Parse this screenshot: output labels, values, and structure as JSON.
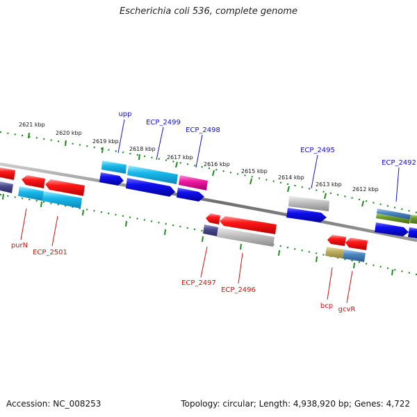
{
  "title": "Escherichia coli 536, complete genome",
  "footer": {
    "accession": "Accession: NC_008253",
    "summary": "Topology: circular; Length: 4,938,920 bp; Genes: 4,722"
  },
  "colors": {
    "backbone": "#777777",
    "tick": "#1a8a1a",
    "plus_label": "#1010c0",
    "minus_label": "#cc1010"
  },
  "position_labels": [
    "2621 kbp",
    "2620 kbp",
    "2619 kbp",
    "2618 kbp",
    "2617 kbp",
    "2616 kbp",
    "2615 kbp",
    "2614 kbp",
    "2613 kbp",
    "2612 kbp"
  ],
  "gene_labels": {
    "upp": "upp",
    "ecp2499": "ECP_2499",
    "ecp2498": "ECP_2498",
    "ecp2495": "ECP_2495",
    "ecp2492": "ECP_2492",
    "purN": "purN",
    "ecp2501": "ECP_2501",
    "ecp2497": "ECP_2497",
    "ecp2496": "ECP_2496",
    "bcp": "bcp",
    "gcvR": "gcvR"
  }
}
